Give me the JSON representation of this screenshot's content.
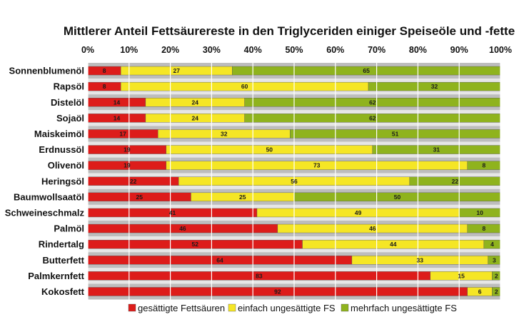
{
  "colors": {
    "saturated": "#dd1c1a",
    "mono": "#f5e625",
    "poly": "#8fb31d",
    "band_dark": "#bdbdbd",
    "band_light": "#e6e6e6",
    "grid": "#ffffff"
  },
  "chart_data": {
    "type": "bar",
    "orientation": "horizontal",
    "stacked": true,
    "title": "Mittlerer Anteil Fettsäurereste in den Triglyceriden einiger Speiseöle und -fette",
    "xlim": [
      0,
      100
    ],
    "xticks": [
      "0%",
      "10%",
      "20%",
      "30%",
      "40%",
      "50%",
      "60%",
      "70%",
      "80%",
      "90%",
      "100%"
    ],
    "xaxis_position": "top",
    "grid": true,
    "legend_position": "bottom",
    "categories": [
      "Sonnenblumenöl",
      "Rapsöl",
      "Distelöl",
      "Sojaöl",
      "Maiskeimöl",
      "Erdnussöl",
      "Olivenöl",
      "Heringsöl",
      "Baumwollsaatöl",
      "Schweineschmalz",
      "Palmöl",
      "Rindertalg",
      "Butterfett",
      "Palmkernfett",
      "Kokosfett"
    ],
    "series": [
      {
        "name": "gesättigte Fettsäuren",
        "color": "#dd1c1a",
        "values": [
          8,
          8,
          14,
          14,
          17,
          19,
          19,
          22,
          25,
          41,
          46,
          52,
          64,
          83,
          92
        ]
      },
      {
        "name": "einfach ungesättigte FS",
        "color": "#f5e625",
        "values": [
          27,
          60,
          24,
          24,
          32,
          50,
          73,
          56,
          25,
          49,
          46,
          44,
          33,
          15,
          6
        ]
      },
      {
        "name": "mehrfach ungesättigte FS",
        "color": "#8fb31d",
        "values": [
          65,
          32,
          62,
          62,
          51,
          31,
          8,
          22,
          50,
          10,
          8,
          4,
          3,
          2,
          2
        ]
      }
    ]
  }
}
